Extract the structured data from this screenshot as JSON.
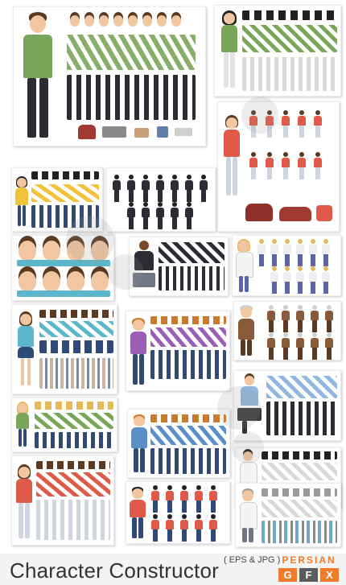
{
  "banner": {
    "title": "Character Constructor",
    "subtitle": "( EPS & JPG )",
    "logo": {
      "top": "PERSIAN",
      "letters": [
        "G",
        "F",
        "X"
      ]
    }
  },
  "colors": {
    "logo_orange": "#f07c2b",
    "logo_grey": "#5c5c5c",
    "skin": "#f2c6a0",
    "hair_brown": "#5a3a22",
    "hair_black": "#222222",
    "hair_blonde": "#e5b85a",
    "green_sweater": "#7aa65a",
    "red_top": "#e05a4a",
    "navy_jeans": "#2f4a78",
    "dark_pants": "#2c2c34",
    "watermark": "#9a9a9a"
  }
}
